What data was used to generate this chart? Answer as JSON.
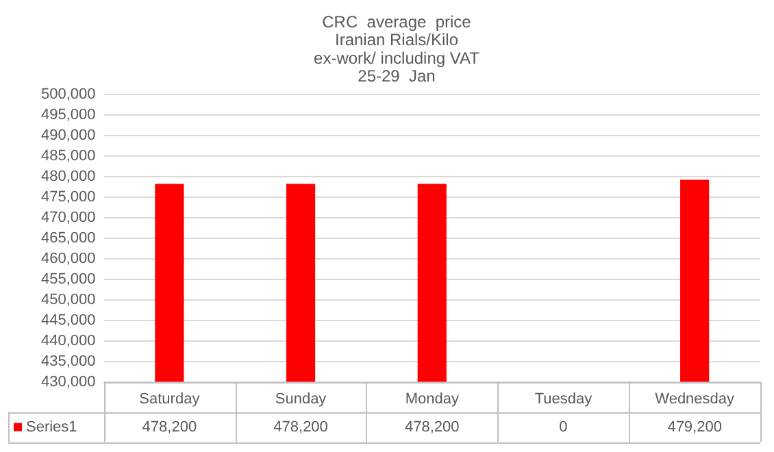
{
  "chart_data": {
    "type": "bar",
    "title": "CRC  average  price\nIranian Rials/Kilo\nex-work/ including VAT\n25-29  Jan",
    "categories": [
      "Saturday",
      "Sunday",
      "Monday",
      "Tuesday",
      "Wednesday"
    ],
    "series": [
      {
        "name": "Series1",
        "color": "#ff0000",
        "values": [
          478200,
          478200,
          478200,
          null,
          479200
        ],
        "value_labels": [
          "478,200",
          "478,200",
          "478,200",
          "0",
          "479,200"
        ]
      }
    ],
    "ylim": [
      430000,
      500000
    ],
    "yticks": [
      {
        "value": 430000,
        "label": "430,000"
      },
      {
        "value": 435000,
        "label": "435,000"
      },
      {
        "value": 440000,
        "label": "440,000"
      },
      {
        "value": 445000,
        "label": "445,000"
      },
      {
        "value": 450000,
        "label": "450,000"
      },
      {
        "value": 455000,
        "label": "455,000"
      },
      {
        "value": 460000,
        "label": "460,000"
      },
      {
        "value": 465000,
        "label": "465,000"
      },
      {
        "value": 470000,
        "label": "470,000"
      },
      {
        "value": 475000,
        "label": "475,000"
      },
      {
        "value": 480000,
        "label": "480,000"
      },
      {
        "value": 485000,
        "label": "485,000"
      },
      {
        "value": 490000,
        "label": "490,000"
      },
      {
        "value": 495000,
        "label": "495,000"
      },
      {
        "value": 500000,
        "label": "500,000"
      }
    ],
    "grid": "y",
    "legend": "bottom"
  }
}
